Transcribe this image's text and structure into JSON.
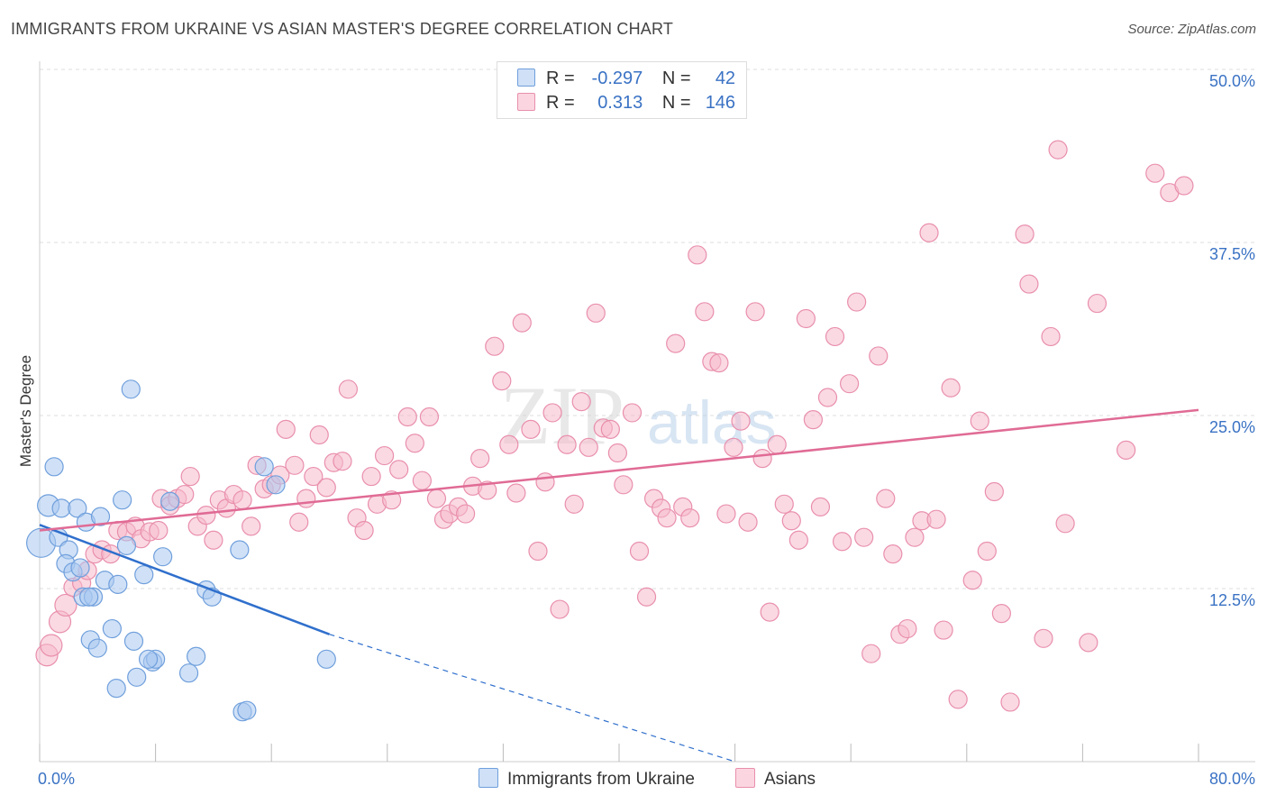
{
  "header": {
    "title": "IMMIGRANTS FROM UKRAINE VS ASIAN MASTER'S DEGREE CORRELATION CHART",
    "source": "Source: ZipAtlas.com"
  },
  "watermark": {
    "part1": "ZIP",
    "part2": "atlas"
  },
  "stats_legend": {
    "rows": [
      {
        "r_label": "R =",
        "r_value": "-0.297",
        "n_label": "N =",
        "n_value": "42",
        "color": "#a9c8f0"
      },
      {
        "r_label": "R =",
        "r_value": "0.313",
        "n_label": "N =",
        "n_value": "146",
        "color": "#f6b9cc"
      }
    ]
  },
  "colors": {
    "ukraine_fill": "#a9c8f0",
    "ukraine_stroke": "#6f9fdc",
    "ukraine_line": "#2f6fcc",
    "asian_fill": "#f6b9cc",
    "asian_stroke": "#e98fac",
    "asian_line": "#e06b95",
    "axis_label": "#3a72c4",
    "grid": "#dcdcdc"
  },
  "chart_data": {
    "type": "scatter",
    "title": "IMMIGRANTS FROM UKRAINE VS ASIAN MASTER'S DEGREE CORRELATION CHART",
    "xlabel": "",
    "ylabel": "Master's Degree",
    "xlim": [
      0,
      80
    ],
    "ylim": [
      0,
      50
    ],
    "x_tick_labels": [
      "0.0%",
      "80.0%"
    ],
    "y_ticks": [
      12.5,
      25,
      37.5,
      50
    ],
    "y_tick_labels": [
      "12.5%",
      "25.0%",
      "37.5%",
      "50.0%"
    ],
    "grid": true,
    "legend_position": "bottom-center",
    "series": [
      {
        "name": "Immigrants from Ukraine",
        "r": -0.297,
        "n": 42,
        "trend": {
          "x": [
            0,
            20
          ],
          "y": [
            17.1,
            9.2
          ],
          "dashed_to": [
            48,
            0
          ]
        },
        "points": [
          [
            0.1,
            15.8,
            16
          ],
          [
            0.6,
            18.5,
            12
          ],
          [
            1.0,
            21.3,
            10
          ],
          [
            1.5,
            18.3,
            10
          ],
          [
            1.3,
            16.2,
            10
          ],
          [
            2.0,
            15.3,
            10
          ],
          [
            1.8,
            14.3,
            10
          ],
          [
            2.3,
            13.7,
            10
          ],
          [
            2.8,
            14.0,
            10
          ],
          [
            2.6,
            18.3,
            10
          ],
          [
            3.2,
            17.3,
            10
          ],
          [
            3.0,
            11.9,
            10
          ],
          [
            3.7,
            11.9,
            10
          ],
          [
            4.2,
            17.7,
            10
          ],
          [
            3.5,
            8.8,
            10
          ],
          [
            4.0,
            8.2,
            10
          ],
          [
            4.5,
            13.1,
            10
          ],
          [
            5.0,
            9.6,
            10
          ],
          [
            5.4,
            12.8,
            10
          ],
          [
            5.7,
            18.9,
            10
          ],
          [
            6.0,
            15.6,
            10
          ],
          [
            6.3,
            26.9,
            10
          ],
          [
            6.5,
            8.7,
            10
          ],
          [
            6.7,
            6.1,
            10
          ],
          [
            7.2,
            13.5,
            10
          ],
          [
            7.8,
            7.2,
            10
          ],
          [
            8.0,
            7.4,
            10
          ],
          [
            8.5,
            14.8,
            10
          ],
          [
            9.0,
            18.8,
            10
          ],
          [
            10.3,
            6.4,
            10
          ],
          [
            10.8,
            7.6,
            10
          ],
          [
            11.5,
            12.4,
            10
          ],
          [
            11.9,
            11.9,
            10
          ],
          [
            13.8,
            15.3,
            10
          ],
          [
            14.0,
            3.6,
            10
          ],
          [
            14.3,
            3.7,
            10
          ],
          [
            15.5,
            21.3,
            10
          ],
          [
            16.3,
            20.0,
            10
          ],
          [
            19.8,
            7.4,
            10
          ],
          [
            5.3,
            5.3,
            10
          ],
          [
            7.5,
            7.4,
            10
          ],
          [
            3.4,
            11.9,
            10
          ]
        ]
      },
      {
        "name": "Asians",
        "r": 0.313,
        "n": 146,
        "trend": {
          "x": [
            0,
            80
          ],
          "y": [
            16.7,
            25.4
          ]
        },
        "points": [
          [
            0.5,
            7.7,
            12
          ],
          [
            0.8,
            8.4,
            12
          ],
          [
            1.4,
            10.1,
            12
          ],
          [
            1.8,
            11.3,
            12
          ],
          [
            2.3,
            12.6,
            10
          ],
          [
            2.9,
            12.9,
            10
          ],
          [
            3.3,
            13.8,
            10
          ],
          [
            3.8,
            15.0,
            10
          ],
          [
            4.3,
            15.3,
            10
          ],
          [
            4.9,
            15.0,
            10
          ],
          [
            5.4,
            16.7,
            10
          ],
          [
            6.0,
            16.6,
            10
          ],
          [
            6.6,
            17.0,
            10
          ],
          [
            7.0,
            16.1,
            10
          ],
          [
            7.6,
            16.6,
            10
          ],
          [
            8.2,
            16.7,
            10
          ],
          [
            8.4,
            19.0,
            10
          ],
          [
            9.0,
            18.5,
            10
          ],
          [
            9.5,
            19.0,
            10
          ],
          [
            10.0,
            19.3,
            10
          ],
          [
            10.4,
            20.6,
            10
          ],
          [
            10.9,
            17.0,
            10
          ],
          [
            11.5,
            17.8,
            10
          ],
          [
            12.0,
            16.0,
            10
          ],
          [
            12.4,
            18.9,
            10
          ],
          [
            12.9,
            18.3,
            10
          ],
          [
            13.4,
            19.3,
            10
          ],
          [
            14.0,
            18.9,
            10
          ],
          [
            14.6,
            17.0,
            10
          ],
          [
            15.0,
            21.4,
            10
          ],
          [
            15.5,
            19.7,
            10
          ],
          [
            16.0,
            20.0,
            10
          ],
          [
            16.6,
            20.7,
            10
          ],
          [
            17.0,
            24.0,
            10
          ],
          [
            17.6,
            21.4,
            10
          ],
          [
            17.9,
            17.3,
            10
          ],
          [
            18.4,
            19.0,
            10
          ],
          [
            18.9,
            20.6,
            10
          ],
          [
            19.3,
            23.6,
            10
          ],
          [
            19.8,
            19.8,
            10
          ],
          [
            20.3,
            21.6,
            10
          ],
          [
            20.9,
            21.7,
            10
          ],
          [
            21.3,
            26.9,
            10
          ],
          [
            21.9,
            17.6,
            10
          ],
          [
            22.4,
            16.7,
            10
          ],
          [
            22.9,
            20.6,
            10
          ],
          [
            23.3,
            18.6,
            10
          ],
          [
            23.8,
            22.1,
            10
          ],
          [
            24.3,
            18.9,
            10
          ],
          [
            24.8,
            21.1,
            10
          ],
          [
            25.4,
            24.9,
            10
          ],
          [
            25.9,
            23.0,
            10
          ],
          [
            26.4,
            20.3,
            10
          ],
          [
            26.9,
            24.9,
            10
          ],
          [
            27.4,
            19.0,
            10
          ],
          [
            27.9,
            17.5,
            10
          ],
          [
            28.3,
            17.9,
            10
          ],
          [
            28.9,
            18.4,
            10
          ],
          [
            29.4,
            17.9,
            10
          ],
          [
            29.9,
            19.9,
            10
          ],
          [
            30.4,
            21.9,
            10
          ],
          [
            30.9,
            19.6,
            10
          ],
          [
            31.4,
            30.0,
            10
          ],
          [
            31.9,
            27.5,
            10
          ],
          [
            32.4,
            22.9,
            10
          ],
          [
            32.9,
            19.4,
            10
          ],
          [
            33.3,
            31.7,
            10
          ],
          [
            33.9,
            24.0,
            10
          ],
          [
            34.4,
            15.2,
            10
          ],
          [
            34.9,
            20.2,
            10
          ],
          [
            35.4,
            25.2,
            10
          ],
          [
            35.9,
            11.0,
            10
          ],
          [
            36.4,
            22.9,
            10
          ],
          [
            36.9,
            18.6,
            10
          ],
          [
            37.4,
            26.0,
            10
          ],
          [
            37.9,
            22.7,
            10
          ],
          [
            38.4,
            32.4,
            10
          ],
          [
            38.9,
            24.1,
            10
          ],
          [
            39.4,
            24.0,
            10
          ],
          [
            39.9,
            22.3,
            10
          ],
          [
            40.3,
            20.0,
            10
          ],
          [
            40.9,
            25.2,
            10
          ],
          [
            41.4,
            15.2,
            10
          ],
          [
            41.9,
            11.9,
            10
          ],
          [
            42.4,
            19.0,
            10
          ],
          [
            42.9,
            18.3,
            10
          ],
          [
            43.3,
            17.6,
            10
          ],
          [
            43.9,
            30.2,
            10
          ],
          [
            44.4,
            18.4,
            10
          ],
          [
            44.9,
            17.6,
            10
          ],
          [
            45.4,
            36.6,
            10
          ],
          [
            45.9,
            32.5,
            10
          ],
          [
            46.4,
            28.9,
            10
          ],
          [
            46.9,
            28.8,
            10
          ],
          [
            47.4,
            17.9,
            10
          ],
          [
            47.9,
            22.7,
            10
          ],
          [
            48.4,
            24.6,
            10
          ],
          [
            48.9,
            17.3,
            10
          ],
          [
            49.4,
            32.5,
            10
          ],
          [
            49.9,
            21.9,
            10
          ],
          [
            50.4,
            10.8,
            10
          ],
          [
            50.9,
            22.9,
            10
          ],
          [
            51.4,
            18.6,
            10
          ],
          [
            51.9,
            17.4,
            10
          ],
          [
            52.4,
            16.0,
            10
          ],
          [
            52.9,
            32.0,
            10
          ],
          [
            53.4,
            24.7,
            10
          ],
          [
            53.9,
            18.4,
            10
          ],
          [
            54.4,
            26.3,
            10
          ],
          [
            54.9,
            30.7,
            10
          ],
          [
            55.4,
            15.9,
            10
          ],
          [
            55.9,
            27.3,
            10
          ],
          [
            56.4,
            33.2,
            10
          ],
          [
            56.9,
            16.2,
            10
          ],
          [
            57.4,
            7.8,
            10
          ],
          [
            57.9,
            29.3,
            10
          ],
          [
            58.4,
            19.0,
            10
          ],
          [
            58.9,
            15.0,
            10
          ],
          [
            59.4,
            9.2,
            10
          ],
          [
            59.9,
            9.6,
            10
          ],
          [
            60.4,
            16.2,
            10
          ],
          [
            60.9,
            17.4,
            10
          ],
          [
            61.4,
            38.2,
            10
          ],
          [
            61.9,
            17.5,
            10
          ],
          [
            62.4,
            9.5,
            10
          ],
          [
            62.9,
            27.0,
            10
          ],
          [
            63.4,
            4.5,
            10
          ],
          [
            64.4,
            13.1,
            10
          ],
          [
            64.9,
            24.6,
            10
          ],
          [
            65.4,
            15.2,
            10
          ],
          [
            65.9,
            19.5,
            10
          ],
          [
            66.4,
            10.7,
            10
          ],
          [
            67.0,
            4.3,
            10
          ],
          [
            68.0,
            38.1,
            10
          ],
          [
            68.3,
            34.5,
            10
          ],
          [
            69.3,
            8.9,
            10
          ],
          [
            69.8,
            30.7,
            10
          ],
          [
            70.3,
            44.2,
            10
          ],
          [
            70.8,
            17.2,
            10
          ],
          [
            72.4,
            8.6,
            10
          ],
          [
            73.0,
            33.1,
            10
          ],
          [
            75.0,
            22.5,
            10
          ],
          [
            77.0,
            42.5,
            10
          ],
          [
            78.0,
            41.1,
            10
          ],
          [
            79.0,
            41.6,
            10
          ]
        ]
      }
    ]
  },
  "bottom_legend": {
    "items": [
      {
        "label": "Immigrants from Ukraine",
        "color": "#a9c8f0"
      },
      {
        "label": "Asians",
        "color": "#f6b9cc"
      }
    ]
  }
}
